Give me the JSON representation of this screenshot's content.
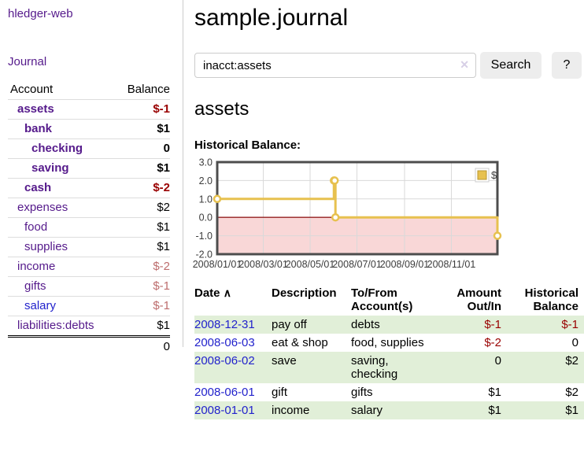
{
  "colors": {
    "purple": "#551a8b",
    "blue": "#2222cc",
    "neg-strong": "#990000",
    "neg-soft": "#bd6d6d",
    "green-stripe": "#e1efd8",
    "chart-gold": "#e7c14f",
    "chart-gold-dark": "#b8962e",
    "chart-pink": "#f9d7d7",
    "chart-zero": "#941f1f",
    "chart-border": "#4d4d4d",
    "chart-grid": "#d9d9d9",
    "chart-text": "#3c3c3c"
  },
  "sidebar": {
    "app_title": "hledger-web",
    "journal_link": "Journal",
    "accounts_table": {
      "header_account": "Account",
      "header_balance": "Balance",
      "rows": [
        {
          "name": "assets",
          "balance": "$-1",
          "indent": 1,
          "bold": true
        },
        {
          "name": "bank",
          "balance": "$1",
          "indent": 2,
          "bold": true
        },
        {
          "name": "checking",
          "balance": "0",
          "indent": 3,
          "bold": true
        },
        {
          "name": "saving",
          "balance": "$1",
          "indent": 3,
          "bold": true
        },
        {
          "name": "cash",
          "balance": "$-2",
          "indent": 2,
          "bold": true
        },
        {
          "name": "expenses",
          "balance": "$2",
          "indent": 1,
          "bold": false
        },
        {
          "name": "food",
          "balance": "$1",
          "indent": 2,
          "bold": false
        },
        {
          "name": "supplies",
          "balance": "$1",
          "indent": 2,
          "bold": false
        },
        {
          "name": "income",
          "balance": "$-2",
          "indent": 1,
          "bold": false
        },
        {
          "name": "gifts",
          "balance": "$-1",
          "indent": 2,
          "bold": false
        },
        {
          "name": "salary",
          "balance": "$-1",
          "indent": 2,
          "bold": false,
          "link_style": "blue"
        },
        {
          "name": "liabilities:debts",
          "balance": "$1",
          "indent": 1,
          "bold": false
        }
      ],
      "total": "0"
    }
  },
  "main": {
    "title": "sample.journal",
    "search": {
      "value": "inacct:assets",
      "clear_icon": "✕",
      "button_label": "Search",
      "help_label": "?"
    },
    "account_heading": "assets",
    "chart_label": "Historical Balance:"
  },
  "chart_data": {
    "type": "line",
    "title": "Historical Balance",
    "step": true,
    "series": [
      {
        "name": "$",
        "points": [
          {
            "x": "2008-01-01",
            "y": 1
          },
          {
            "x": "2008-06-01",
            "y": 2
          },
          {
            "x": "2008-06-02",
            "y": 2
          },
          {
            "x": "2008-06-03",
            "y": 0
          },
          {
            "x": "2008-12-31",
            "y": -1
          }
        ]
      }
    ],
    "x_range": [
      "2008-01-01",
      "2008-12-31"
    ],
    "ylim": [
      -2,
      3
    ],
    "x_ticks": [
      "2008/01/01",
      "2008/03/01",
      "2008/05/01",
      "2008/07/01",
      "2008/09/01",
      "2008/11/01"
    ],
    "y_ticks": [
      3,
      2,
      1,
      0,
      -1,
      -2
    ],
    "grid": true,
    "legend": {
      "label": "$",
      "position": "top-right"
    },
    "negative_region_shaded": true
  },
  "transactions": {
    "headers": {
      "date": "Date",
      "sort_icon": "∧",
      "description": "Description",
      "accounts": "To/From Account(s)",
      "amount": "Amount Out/In",
      "balance": "Historical Balance"
    },
    "rows": [
      {
        "date": "2008-12-31",
        "description": "pay off",
        "accounts": "debts",
        "amount": "$-1",
        "balance": "$-1"
      },
      {
        "date": "2008-06-03",
        "description": "eat & shop",
        "accounts": "food, supplies",
        "amount": "$-2",
        "balance": "0"
      },
      {
        "date": "2008-06-02",
        "description": "save",
        "accounts": "saving, checking",
        "amount": "0",
        "balance": "$2"
      },
      {
        "date": "2008-06-01",
        "description": "gift",
        "accounts": "gifts",
        "amount": "$1",
        "balance": "$2"
      },
      {
        "date": "2008-01-01",
        "description": "income",
        "accounts": "salary",
        "amount": "$1",
        "balance": "$1"
      }
    ]
  }
}
